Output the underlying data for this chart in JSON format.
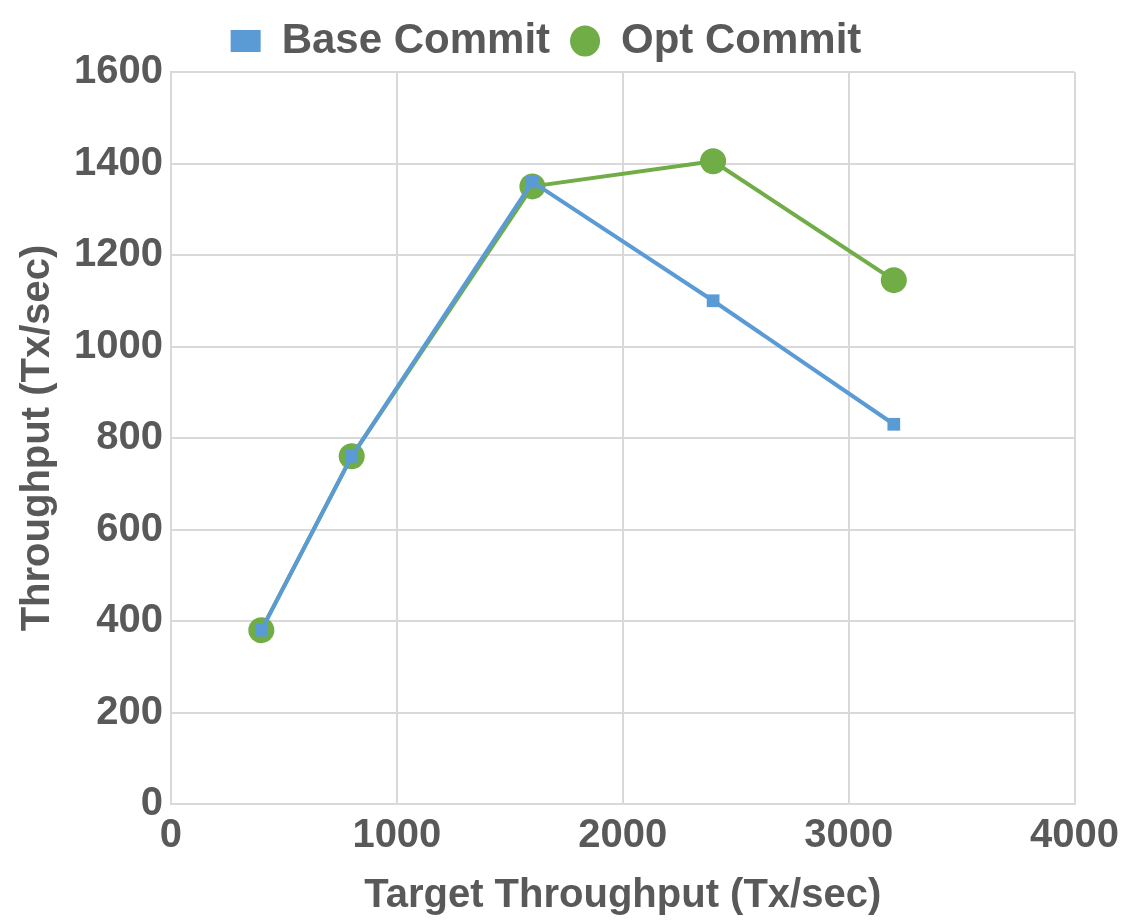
{
  "chart_data": {
    "type": "line",
    "xlabel": "Target Throughput (Tx/sec)",
    "ylabel": "Throughput (Tx/sec)",
    "x": [
      400,
      800,
      1600,
      2400,
      3200
    ],
    "series": [
      {
        "name": "Base Commit",
        "color": "#5b9bd5",
        "marker": "square",
        "values": [
          380,
          760,
          1360,
          1100,
          830
        ]
      },
      {
        "name": "Opt Commit",
        "color": "#70ad47",
        "marker": "circle",
        "values": [
          380,
          760,
          1350,
          1405,
          1145
        ]
      }
    ],
    "xlim": [
      0,
      4000
    ],
    "xticks": [
      0,
      1000,
      2000,
      3000,
      4000
    ],
    "ylim": [
      0,
      1600
    ],
    "yticks": [
      0,
      200,
      400,
      600,
      800,
      1000,
      1200,
      1400,
      1600
    ],
    "grid": true,
    "legend": "top",
    "line_style": "solid"
  }
}
